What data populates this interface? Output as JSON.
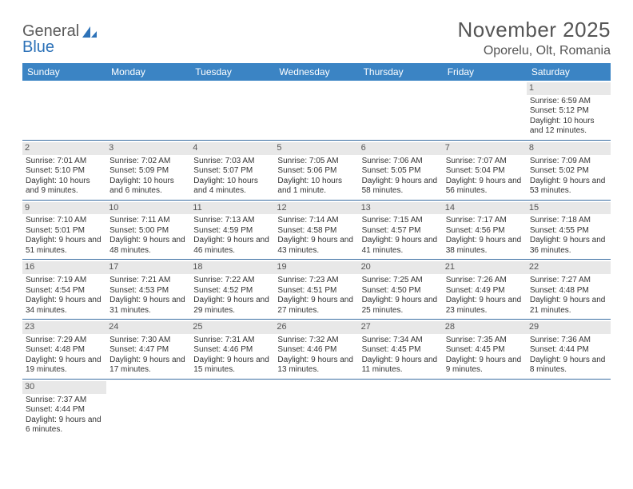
{
  "brand": {
    "part1": "General",
    "part2": "Blue"
  },
  "title": "November 2025",
  "location": "Oporelu, Olt, Romania",
  "colors": {
    "header_bar": "#3b84c4",
    "row_divider": "#3b6fa3",
    "daynum_bg": "#e8e8e8",
    "text": "#333333",
    "title_text": "#555555",
    "logo_grey": "#5a5a5a",
    "logo_blue": "#2d72b8",
    "background": "#ffffff"
  },
  "weekdays": [
    "Sunday",
    "Monday",
    "Tuesday",
    "Wednesday",
    "Thursday",
    "Friday",
    "Saturday"
  ],
  "weeks": [
    [
      {
        "empty": true
      },
      {
        "empty": true
      },
      {
        "empty": true
      },
      {
        "empty": true
      },
      {
        "empty": true
      },
      {
        "empty": true
      },
      {
        "day": "1",
        "sunrise": "Sunrise: 6:59 AM",
        "sunset": "Sunset: 5:12 PM",
        "daylight": "Daylight: 10 hours and 12 minutes."
      }
    ],
    [
      {
        "day": "2",
        "sunrise": "Sunrise: 7:01 AM",
        "sunset": "Sunset: 5:10 PM",
        "daylight": "Daylight: 10 hours and 9 minutes."
      },
      {
        "day": "3",
        "sunrise": "Sunrise: 7:02 AM",
        "sunset": "Sunset: 5:09 PM",
        "daylight": "Daylight: 10 hours and 6 minutes."
      },
      {
        "day": "4",
        "sunrise": "Sunrise: 7:03 AM",
        "sunset": "Sunset: 5:07 PM",
        "daylight": "Daylight: 10 hours and 4 minutes."
      },
      {
        "day": "5",
        "sunrise": "Sunrise: 7:05 AM",
        "sunset": "Sunset: 5:06 PM",
        "daylight": "Daylight: 10 hours and 1 minute."
      },
      {
        "day": "6",
        "sunrise": "Sunrise: 7:06 AM",
        "sunset": "Sunset: 5:05 PM",
        "daylight": "Daylight: 9 hours and 58 minutes."
      },
      {
        "day": "7",
        "sunrise": "Sunrise: 7:07 AM",
        "sunset": "Sunset: 5:04 PM",
        "daylight": "Daylight: 9 hours and 56 minutes."
      },
      {
        "day": "8",
        "sunrise": "Sunrise: 7:09 AM",
        "sunset": "Sunset: 5:02 PM",
        "daylight": "Daylight: 9 hours and 53 minutes."
      }
    ],
    [
      {
        "day": "9",
        "sunrise": "Sunrise: 7:10 AM",
        "sunset": "Sunset: 5:01 PM",
        "daylight": "Daylight: 9 hours and 51 minutes."
      },
      {
        "day": "10",
        "sunrise": "Sunrise: 7:11 AM",
        "sunset": "Sunset: 5:00 PM",
        "daylight": "Daylight: 9 hours and 48 minutes."
      },
      {
        "day": "11",
        "sunrise": "Sunrise: 7:13 AM",
        "sunset": "Sunset: 4:59 PM",
        "daylight": "Daylight: 9 hours and 46 minutes."
      },
      {
        "day": "12",
        "sunrise": "Sunrise: 7:14 AM",
        "sunset": "Sunset: 4:58 PM",
        "daylight": "Daylight: 9 hours and 43 minutes."
      },
      {
        "day": "13",
        "sunrise": "Sunrise: 7:15 AM",
        "sunset": "Sunset: 4:57 PM",
        "daylight": "Daylight: 9 hours and 41 minutes."
      },
      {
        "day": "14",
        "sunrise": "Sunrise: 7:17 AM",
        "sunset": "Sunset: 4:56 PM",
        "daylight": "Daylight: 9 hours and 38 minutes."
      },
      {
        "day": "15",
        "sunrise": "Sunrise: 7:18 AM",
        "sunset": "Sunset: 4:55 PM",
        "daylight": "Daylight: 9 hours and 36 minutes."
      }
    ],
    [
      {
        "day": "16",
        "sunrise": "Sunrise: 7:19 AM",
        "sunset": "Sunset: 4:54 PM",
        "daylight": "Daylight: 9 hours and 34 minutes."
      },
      {
        "day": "17",
        "sunrise": "Sunrise: 7:21 AM",
        "sunset": "Sunset: 4:53 PM",
        "daylight": "Daylight: 9 hours and 31 minutes."
      },
      {
        "day": "18",
        "sunrise": "Sunrise: 7:22 AM",
        "sunset": "Sunset: 4:52 PM",
        "daylight": "Daylight: 9 hours and 29 minutes."
      },
      {
        "day": "19",
        "sunrise": "Sunrise: 7:23 AM",
        "sunset": "Sunset: 4:51 PM",
        "daylight": "Daylight: 9 hours and 27 minutes."
      },
      {
        "day": "20",
        "sunrise": "Sunrise: 7:25 AM",
        "sunset": "Sunset: 4:50 PM",
        "daylight": "Daylight: 9 hours and 25 minutes."
      },
      {
        "day": "21",
        "sunrise": "Sunrise: 7:26 AM",
        "sunset": "Sunset: 4:49 PM",
        "daylight": "Daylight: 9 hours and 23 minutes."
      },
      {
        "day": "22",
        "sunrise": "Sunrise: 7:27 AM",
        "sunset": "Sunset: 4:48 PM",
        "daylight": "Daylight: 9 hours and 21 minutes."
      }
    ],
    [
      {
        "day": "23",
        "sunrise": "Sunrise: 7:29 AM",
        "sunset": "Sunset: 4:48 PM",
        "daylight": "Daylight: 9 hours and 19 minutes."
      },
      {
        "day": "24",
        "sunrise": "Sunrise: 7:30 AM",
        "sunset": "Sunset: 4:47 PM",
        "daylight": "Daylight: 9 hours and 17 minutes."
      },
      {
        "day": "25",
        "sunrise": "Sunrise: 7:31 AM",
        "sunset": "Sunset: 4:46 PM",
        "daylight": "Daylight: 9 hours and 15 minutes."
      },
      {
        "day": "26",
        "sunrise": "Sunrise: 7:32 AM",
        "sunset": "Sunset: 4:46 PM",
        "daylight": "Daylight: 9 hours and 13 minutes."
      },
      {
        "day": "27",
        "sunrise": "Sunrise: 7:34 AM",
        "sunset": "Sunset: 4:45 PM",
        "daylight": "Daylight: 9 hours and 11 minutes."
      },
      {
        "day": "28",
        "sunrise": "Sunrise: 7:35 AM",
        "sunset": "Sunset: 4:45 PM",
        "daylight": "Daylight: 9 hours and 9 minutes."
      },
      {
        "day": "29",
        "sunrise": "Sunrise: 7:36 AM",
        "sunset": "Sunset: 4:44 PM",
        "daylight": "Daylight: 9 hours and 8 minutes."
      }
    ],
    [
      {
        "day": "30",
        "sunrise": "Sunrise: 7:37 AM",
        "sunset": "Sunset: 4:44 PM",
        "daylight": "Daylight: 9 hours and 6 minutes."
      },
      {
        "empty": true
      },
      {
        "empty": true
      },
      {
        "empty": true
      },
      {
        "empty": true
      },
      {
        "empty": true
      },
      {
        "empty": true
      }
    ]
  ]
}
